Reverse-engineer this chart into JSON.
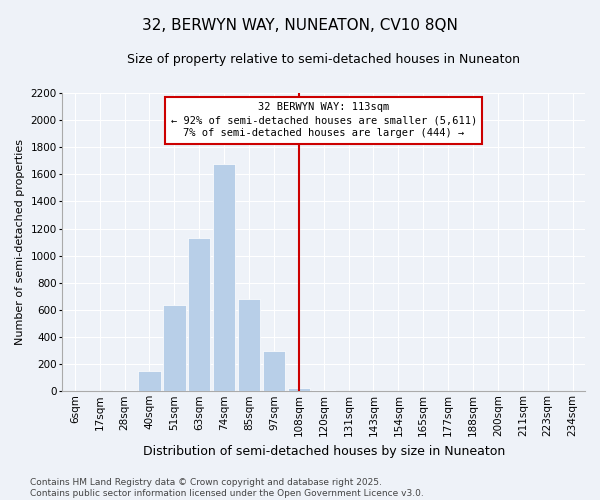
{
  "title": "32, BERWYN WAY, NUNEATON, CV10 8QN",
  "subtitle": "Size of property relative to semi-detached houses in Nuneaton",
  "xlabel": "Distribution of semi-detached houses by size in Nuneaton",
  "ylabel": "Number of semi-detached properties",
  "footer_line1": "Contains HM Land Registry data © Crown copyright and database right 2025.",
  "footer_line2": "Contains public sector information licensed under the Open Government Licence v3.0.",
  "bin_labels": [
    "6sqm",
    "17sqm",
    "28sqm",
    "40sqm",
    "51sqm",
    "63sqm",
    "74sqm",
    "85sqm",
    "97sqm",
    "108sqm",
    "120sqm",
    "131sqm",
    "143sqm",
    "154sqm",
    "165sqm",
    "177sqm",
    "188sqm",
    "200sqm",
    "211sqm",
    "223sqm",
    "234sqm"
  ],
  "bar_data": [
    2,
    5,
    8,
    150,
    640,
    1130,
    1680,
    680,
    300,
    25,
    10,
    0,
    0,
    0,
    0,
    0,
    0,
    0,
    0,
    0,
    0
  ],
  "bar_color": "#b8cfe8",
  "vline_index": 9,
  "vline_color": "#cc0000",
  "annotation_title": "32 BERWYN WAY: 113sqm",
  "annotation_line1": "← 92% of semi-detached houses are smaller (5,611)",
  "annotation_line2": "7% of semi-detached houses are larger (444) →",
  "annotation_box_edgecolor": "#cc0000",
  "ylim": [
    0,
    2200
  ],
  "yticks": [
    0,
    200,
    400,
    600,
    800,
    1000,
    1200,
    1400,
    1600,
    1800,
    2000,
    2200
  ],
  "background_color": "#eef2f8",
  "title_fontsize": 11,
  "subtitle_fontsize": 9,
  "ylabel_fontsize": 8,
  "xlabel_fontsize": 9,
  "tick_fontsize": 7.5,
  "footer_fontsize": 6.5
}
